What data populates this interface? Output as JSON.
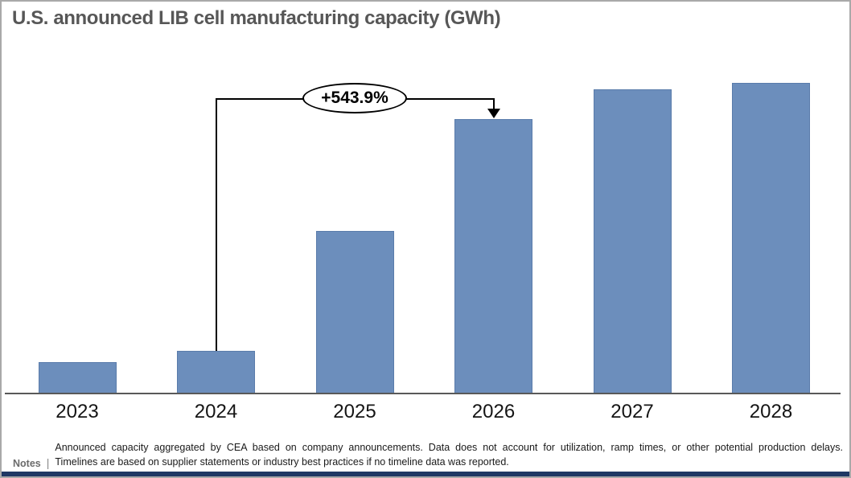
{
  "window": {
    "background_color": "#ffffff",
    "border_color": "#a9a9a9",
    "bottom_bar_color": "#1f3864"
  },
  "header": {
    "title": "U.S. announced LIB cell manufacturing capacity (GWh)",
    "title_color": "#575757"
  },
  "chart_data": {
    "type": "bar",
    "title": "U.S. announced LIB cell manufacturing capacity (GWh)",
    "categories": [
      "2023",
      "2024",
      "2025",
      "2026",
      "2027",
      "2028"
    ],
    "values": [
      10.1,
      13.7,
      52.3,
      88.3,
      97.9,
      100
    ],
    "units": "relative capacity index (chart shows no y-axis scale; values normalized to 2028 = 100)",
    "xlabel": "",
    "ylabel": "",
    "ylim": [
      0,
      104
    ],
    "grid": false,
    "legend": "none",
    "bar_color": "#6c8ebc",
    "bar_border_color": "#5a7cab",
    "axis_color": "#595959",
    "annotation": {
      "label": "+543.9%",
      "from_category": "2024",
      "to_category": "2026"
    }
  },
  "footer": {
    "label": "Notes",
    "separator": "|",
    "lines": [
      "Announced capacity aggregated by CEA based on company announcements. Data does not account for utilization, ramp times, or other potential production delays.",
      "Timelines are based on supplier statements or industry best practices if no timeline data was reported."
    ]
  }
}
